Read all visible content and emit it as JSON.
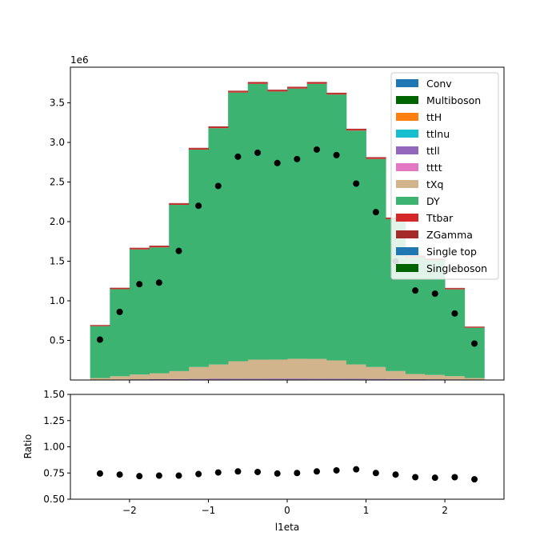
{
  "chart_data": [
    {
      "type": "bar",
      "stacked": true,
      "title": "",
      "xlabel": "",
      "ylabel": "",
      "offset_text": "1e6",
      "xlim": [
        -2.75,
        2.75
      ],
      "ylim": [
        0,
        3.95
      ],
      "bin_edges": [
        -2.5,
        -2.25,
        -2.0,
        -1.75,
        -1.5,
        -1.25,
        -1.0,
        -0.75,
        -0.5,
        -0.25,
        0.0,
        0.25,
        0.5,
        0.75,
        1.0,
        1.25,
        1.5,
        1.75,
        2.0,
        2.25,
        2.5
      ],
      "xticks": [
        -2,
        -1,
        0,
        1,
        2
      ],
      "xtick_labels": [
        "−2",
        "−1",
        "0",
        "1",
        "2"
      ],
      "yticks": [
        0.5,
        1.0,
        1.5,
        2.0,
        2.5,
        3.0,
        3.5
      ],
      "ytick_labels": [
        "0.5",
        "1.0",
        "1.5",
        "2.0",
        "2.5",
        "3.0",
        "3.5"
      ],
      "legend_position": "top-right",
      "series": [
        {
          "name": "Conv",
          "color": "#1f77b4",
          "values": [
            0,
            0,
            0,
            0,
            0,
            0,
            0,
            0,
            0,
            0,
            0,
            0,
            0,
            0,
            0,
            0,
            0,
            0,
            0,
            0
          ]
        },
        {
          "name": "Multiboson",
          "color": "#006400",
          "values": [
            0.002,
            0.003,
            0.004,
            0.004,
            0.005,
            0.006,
            0.006,
            0.007,
            0.007,
            0.007,
            0.007,
            0.007,
            0.007,
            0.007,
            0.006,
            0.006,
            0.005,
            0.004,
            0.004,
            0.002
          ]
        },
        {
          "name": "ttH",
          "color": "#ff7f0e",
          "values": [
            0,
            0,
            0,
            0,
            0,
            0,
            0,
            0,
            0,
            0,
            0,
            0,
            0,
            0,
            0,
            0,
            0,
            0,
            0,
            0
          ]
        },
        {
          "name": "ttlnu",
          "color": "#17becf",
          "values": [
            0,
            0,
            0,
            0,
            0,
            0,
            0,
            0,
            0,
            0,
            0,
            0,
            0,
            0,
            0,
            0,
            0,
            0,
            0,
            0
          ]
        },
        {
          "name": "ttll",
          "color": "#9467bd",
          "values": [
            0.003,
            0.004,
            0.005,
            0.006,
            0.007,
            0.008,
            0.009,
            0.01,
            0.01,
            0.011,
            0.011,
            0.01,
            0.01,
            0.009,
            0.008,
            0.007,
            0.006,
            0.005,
            0.004,
            0.003
          ]
        },
        {
          "name": "tttt",
          "color": "#e377c2",
          "values": [
            0,
            0,
            0,
            0,
            0,
            0,
            0,
            0,
            0,
            0,
            0,
            0,
            0,
            0,
            0,
            0,
            0,
            0,
            0,
            0
          ]
        },
        {
          "name": "tXq",
          "color": "#d2b48c",
          "values": [
            0.02,
            0.04,
            0.06,
            0.075,
            0.1,
            0.15,
            0.18,
            0.22,
            0.24,
            0.24,
            0.25,
            0.25,
            0.23,
            0.18,
            0.15,
            0.1,
            0.065,
            0.055,
            0.04,
            0.02
          ]
        },
        {
          "name": "DY",
          "color": "#3cb371",
          "values": [
            0.655,
            1.1,
            1.58,
            1.59,
            2.1,
            2.745,
            2.985,
            3.393,
            3.483,
            3.385,
            3.412,
            3.473,
            3.358,
            2.954,
            2.627,
            1.918,
            1.474,
            1.451,
            1.097,
            0.635
          ]
        },
        {
          "name": "Ttbar",
          "color": "#d62728",
          "values": [
            0.008,
            0.01,
            0.012,
            0.012,
            0.013,
            0.013,
            0.013,
            0.013,
            0.013,
            0.013,
            0.013,
            0.013,
            0.013,
            0.013,
            0.013,
            0.012,
            0.012,
            0.011,
            0.01,
            0.008
          ]
        },
        {
          "name": "ZGamma",
          "color": "#a52a2a",
          "values": [
            0.007,
            0.008,
            0.009,
            0.009,
            0.009,
            0.01,
            0.01,
            0.01,
            0.01,
            0.01,
            0.01,
            0.01,
            0.01,
            0.01,
            0.01,
            0.009,
            0.009,
            0.008,
            0.008,
            0.007
          ]
        },
        {
          "name": "Single top",
          "color": "#1f77b4",
          "values": [
            0,
            0,
            0,
            0,
            0,
            0,
            0,
            0,
            0,
            0,
            0,
            0,
            0,
            0,
            0,
            0,
            0,
            0,
            0,
            0
          ]
        },
        {
          "name": "Singleboson",
          "color": "#006400",
          "values": [
            0,
            0,
            0,
            0,
            0,
            0,
            0,
            0,
            0,
            0,
            0,
            0,
            0,
            0,
            0,
            0,
            0,
            0,
            0,
            0
          ]
        }
      ],
      "data_points": {
        "x": [
          -2.375,
          -2.125,
          -1.875,
          -1.625,
          -1.375,
          -1.125,
          -0.875,
          -0.625,
          -0.375,
          -0.125,
          0.125,
          0.375,
          0.625,
          0.875,
          1.125,
          1.375,
          1.625,
          1.875,
          2.125,
          2.375
        ],
        "y": [
          0.51,
          0.86,
          1.21,
          1.23,
          1.63,
          2.2,
          2.45,
          2.82,
          2.87,
          2.74,
          2.79,
          2.91,
          2.84,
          2.48,
          2.12,
          1.5,
          1.13,
          1.09,
          0.84,
          0.46
        ],
        "color": "#000000"
      }
    },
    {
      "type": "scatter",
      "title": "",
      "xlabel": "l1eta",
      "ylabel": "Ratio",
      "xlim": [
        -2.75,
        2.75
      ],
      "ylim": [
        0.5,
        1.5
      ],
      "xticks": [
        -2,
        -1,
        0,
        1,
        2
      ],
      "xtick_labels": [
        "−2",
        "−1",
        "0",
        "1",
        "2"
      ],
      "yticks": [
        0.5,
        0.75,
        1.0,
        1.25,
        1.5
      ],
      "ytick_labels": [
        "0.50",
        "0.75",
        "1.00",
        "1.25",
        "1.50"
      ],
      "x": [
        -2.375,
        -2.125,
        -1.875,
        -1.625,
        -1.375,
        -1.125,
        -0.875,
        -0.625,
        -0.375,
        -0.125,
        0.125,
        0.375,
        0.625,
        0.875,
        1.125,
        1.375,
        1.625,
        1.875,
        2.125,
        2.375
      ],
      "y": [
        0.745,
        0.735,
        0.72,
        0.725,
        0.725,
        0.74,
        0.755,
        0.765,
        0.76,
        0.745,
        0.75,
        0.765,
        0.775,
        0.785,
        0.75,
        0.735,
        0.71,
        0.705,
        0.71,
        0.69
      ],
      "color": "#000000"
    }
  ]
}
